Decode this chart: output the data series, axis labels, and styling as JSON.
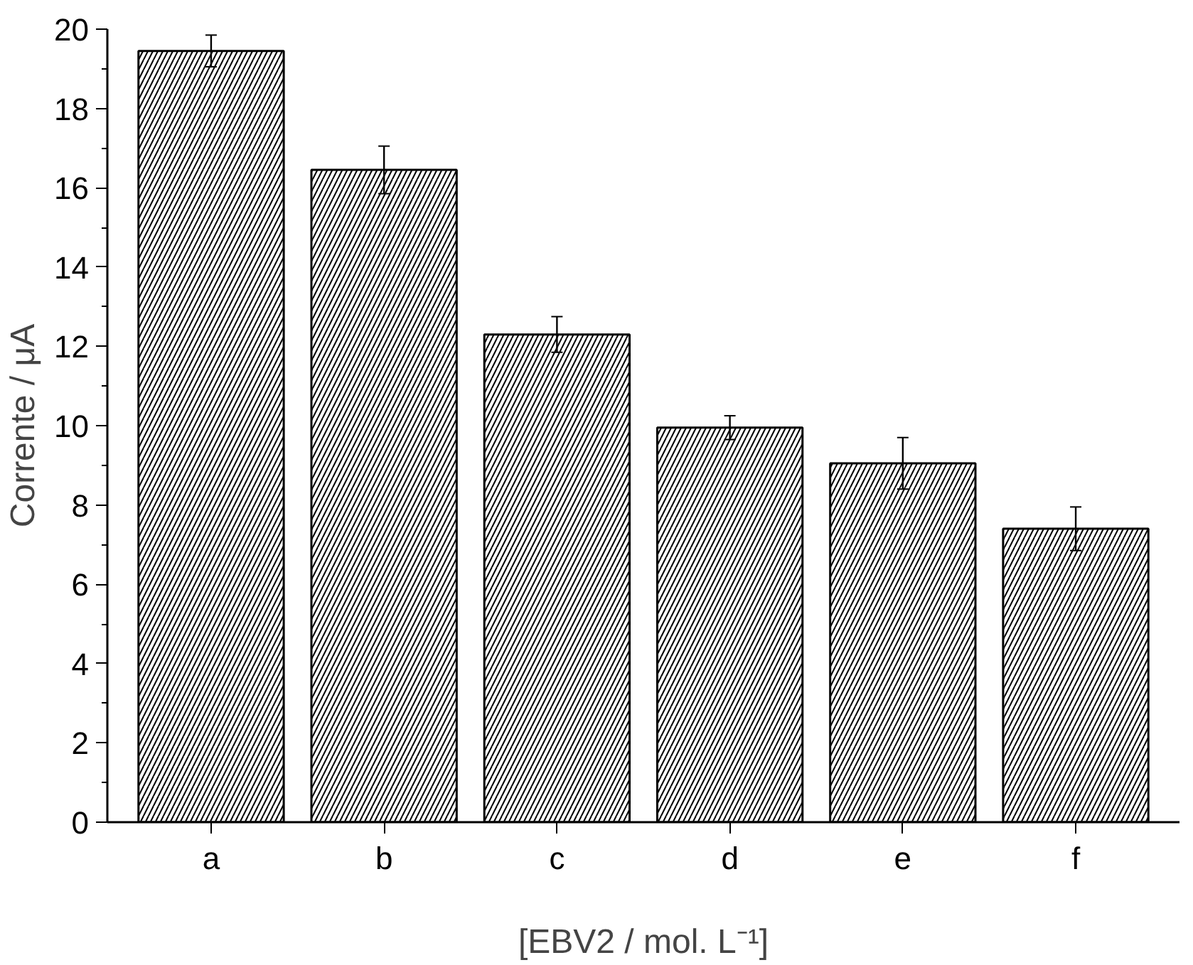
{
  "chart_data": {
    "type": "bar",
    "xlabel": "[EBV2 / mol. L⁻¹]",
    "ylabel": "Corrente / μA",
    "categories": [
      "a",
      "b",
      "c",
      "d",
      "e",
      "f"
    ],
    "values": [
      19.45,
      16.45,
      12.3,
      9.95,
      9.05,
      7.4
    ],
    "errors": [
      0.4,
      0.6,
      0.45,
      0.3,
      0.65,
      0.55
    ],
    "color": "#000000",
    "ylim": [
      0,
      20
    ],
    "yticks": [
      0,
      2,
      4,
      6,
      8,
      10,
      12,
      14,
      16,
      18,
      20
    ],
    "grid": false
  }
}
